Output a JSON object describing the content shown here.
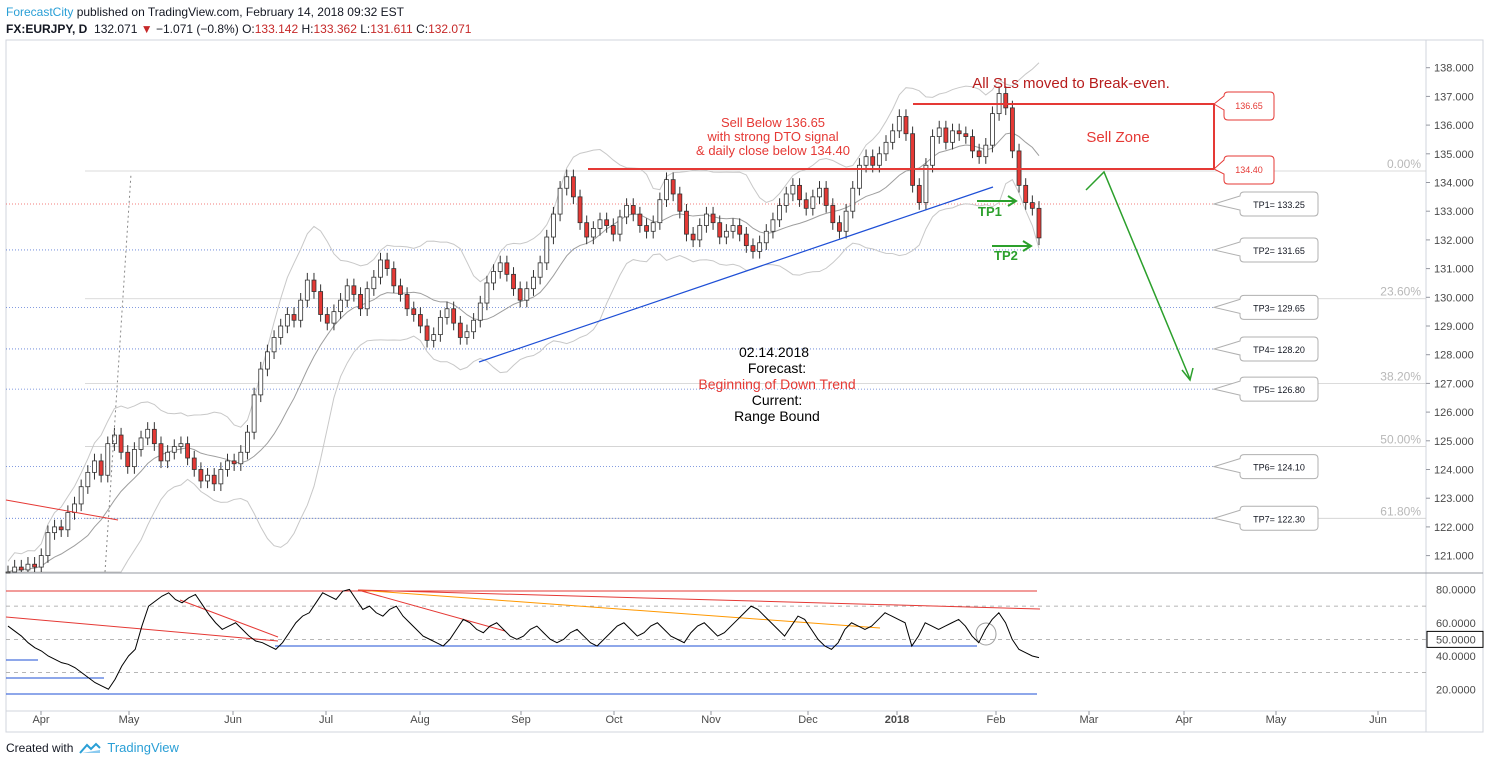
{
  "header": {
    "publisher": "ForecastCity",
    "published_text": " published on TradingView.com, February 14, 2018 09:32 EST",
    "symbol": "FX:EURJPY, D",
    "last": "132.071",
    "change_arrow": "▼",
    "change": "−1.071 (−0.8%)",
    "o_label": "O:",
    "o": "133.142",
    "h_label": "H:",
    "h": "133.362",
    "l_label": "L:",
    "l": "131.611",
    "c_label": "C:",
    "c": "132.071"
  },
  "footer": {
    "created_with": "Created with",
    "brand": "TradingView",
    "logo_icon": "tradingview-logo-icon"
  },
  "annotations": {
    "sl_note": "All SLs moved to Break-even.",
    "sell_zone": "Sell Zone",
    "sell_rule_1": "Sell Below 136.65",
    "sell_rule_2": "with strong DTO signal",
    "sell_rule_3": "& daily close below 134.40",
    "tp1": "TP1",
    "tp2": "TP2",
    "forecast_date": "02.14.2018",
    "forecast_label": "Forecast:",
    "forecast_value": "Beginning of Down Trend",
    "current_label": "Current:",
    "current_value": "Range Bound",
    "zone_top_callout": "136.65",
    "zone_bottom_callout": "134.40"
  },
  "chart_data": {
    "type": "candlestick",
    "symbol": "FX:EURJPY",
    "timeframe": "D",
    "price_axis": {
      "ylim": [
        120.3,
        138.2
      ],
      "ticks": [
        121.0,
        122.0,
        123.0,
        124.0,
        125.0,
        126.0,
        127.0,
        128.0,
        129.0,
        130.0,
        131.0,
        132.0,
        133.0,
        134.0,
        135.0,
        136.0,
        137.0,
        138.0
      ]
    },
    "price_labels": [
      "121.000",
      "122.000",
      "123.000",
      "124.000",
      "125.000",
      "126.000",
      "127.000",
      "128.000",
      "129.000",
      "130.000",
      "131.000",
      "132.000",
      "133.000",
      "134.000",
      "135.000",
      "136.000",
      "137.000",
      "138.000"
    ],
    "time_axis": [
      "Apr",
      "May",
      "Jun",
      "Jul",
      "Aug",
      "Sep",
      "Oct",
      "Nov",
      "Dec",
      "2018",
      "Feb",
      "Mar",
      "Apr",
      "May",
      "Jun"
    ],
    "time_axis_bold": "2018",
    "fibonacci": [
      {
        "label": "0.00%",
        "price": 134.4
      },
      {
        "label": "23.60%",
        "price": 129.95
      },
      {
        "label": "38.20%",
        "price": 127.0
      },
      {
        "label": "50.00%",
        "price": 124.8
      },
      {
        "label": "61.80%",
        "price": 122.3
      }
    ],
    "take_profits": [
      {
        "label": "TP1= 133.25",
        "price": 133.25
      },
      {
        "label": "TP2= 131.65",
        "price": 131.65
      },
      {
        "label": "TP3= 129.65",
        "price": 129.65
      },
      {
        "label": "TP4= 128.20",
        "price": 128.2
      },
      {
        "label": "TP5= 126.80",
        "price": 126.8
      },
      {
        "label": "TP6= 124.10",
        "price": 124.1
      },
      {
        "label": "TP7= 122.30",
        "price": 122.3
      }
    ],
    "sell_zone": {
      "top": 136.65,
      "bottom": 134.4
    },
    "closes": [
      120.4,
      120.6,
      120.5,
      120.7,
      120.6,
      121.0,
      121.8,
      122.0,
      121.9,
      122.5,
      122.8,
      123.4,
      123.9,
      124.3,
      123.8,
      124.9,
      125.2,
      124.6,
      124.1,
      124.7,
      125.1,
      125.4,
      124.9,
      124.3,
      124.6,
      124.8,
      124.9,
      124.4,
      124.0,
      123.6,
      123.8,
      123.5,
      124.0,
      124.3,
      124.2,
      124.6,
      125.3,
      126.6,
      127.5,
      128.1,
      128.6,
      129.0,
      129.4,
      129.2,
      129.9,
      130.6,
      130.2,
      129.4,
      129.1,
      129.5,
      129.9,
      130.4,
      130.1,
      129.6,
      130.3,
      130.7,
      131.3,
      131.0,
      130.4,
      130.1,
      129.6,
      129.4,
      129.0,
      128.5,
      128.7,
      129.3,
      129.6,
      129.1,
      128.6,
      128.8,
      129.2,
      129.8,
      130.5,
      130.9,
      131.2,
      130.8,
      130.3,
      129.9,
      130.3,
      130.7,
      131.2,
      132.1,
      132.9,
      133.8,
      134.2,
      133.5,
      132.6,
      132.1,
      132.4,
      132.7,
      132.5,
      132.2,
      132.8,
      133.2,
      132.9,
      132.5,
      132.3,
      132.6,
      133.4,
      134.1,
      133.6,
      133.0,
      132.2,
      132.0,
      132.5,
      132.9,
      132.6,
      132.1,
      132.3,
      132.5,
      132.2,
      131.8,
      131.6,
      131.9,
      132.3,
      132.7,
      133.2,
      133.6,
      133.9,
      133.4,
      133.1,
      133.5,
      133.8,
      133.2,
      132.6,
      132.3,
      133.0,
      133.8,
      134.6,
      134.9,
      134.6,
      135.0,
      135.4,
      135.8,
      136.3,
      135.7,
      133.9,
      133.3,
      134.6,
      135.6,
      135.9,
      135.4,
      135.8,
      135.7,
      135.6,
      135.1,
      134.9,
      135.3,
      136.4,
      137.1,
      136.6,
      135.1,
      133.9,
      133.3,
      133.1,
      132.07
    ],
    "dto_panel": {
      "ylim": [
        15,
        85
      ],
      "ticks": [
        20,
        40,
        50,
        60,
        80
      ],
      "tick_labels": [
        "20.0000",
        "40.0000",
        "50.0000",
        "60.0000",
        "80.0000"
      ],
      "highlight_label": "50.0000",
      "values": [
        58,
        55,
        52,
        48,
        45,
        43,
        40,
        38,
        36,
        35,
        33,
        30,
        27,
        24,
        22,
        20,
        26,
        34,
        40,
        44,
        58,
        70,
        73,
        76,
        78,
        74,
        72,
        75,
        77,
        71,
        65,
        60,
        56,
        58,
        60,
        56,
        52,
        49,
        48,
        46,
        44,
        48,
        54,
        60,
        64,
        66,
        72,
        78,
        76,
        74,
        79,
        80,
        74,
        68,
        70,
        66,
        64,
        68,
        70,
        64,
        60,
        56,
        52,
        50,
        48,
        46,
        50,
        56,
        62,
        60,
        56,
        54,
        58,
        60,
        56,
        52,
        50,
        52,
        56,
        58,
        54,
        50,
        48,
        50,
        54,
        56,
        52,
        48,
        46,
        50,
        54,
        58,
        60,
        56,
        52,
        54,
        58,
        60,
        56,
        52,
        50,
        48,
        54,
        58,
        60,
        56,
        52,
        54,
        58,
        62,
        66,
        70,
        68,
        64,
        60,
        56,
        52,
        58,
        64,
        62,
        56,
        50,
        46,
        44,
        48,
        56,
        60,
        58,
        56,
        58,
        62,
        66,
        64,
        62,
        60,
        46,
        52,
        60,
        58,
        56,
        58,
        60,
        62,
        58,
        52,
        48,
        56,
        62,
        66,
        60,
        50,
        44,
        42,
        40,
        39
      ]
    }
  }
}
